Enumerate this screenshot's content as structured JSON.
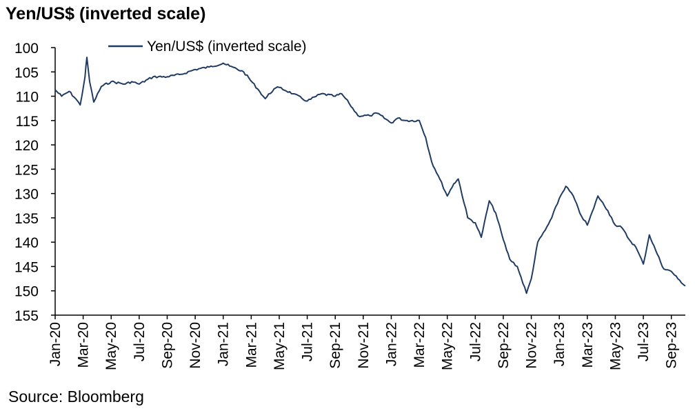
{
  "title": "Yen/US$ (inverted scale)",
  "source": "Source: Bloomberg",
  "chart_data": {
    "type": "line",
    "title": "Yen/US$ (inverted scale)",
    "xlabel": "",
    "ylabel": "",
    "x_start": "2020-01",
    "x_end": "2023-10",
    "ylim": [
      100,
      155
    ],
    "y_inverted": true,
    "y_ticks": [
      100,
      105,
      110,
      115,
      120,
      125,
      130,
      135,
      140,
      145,
      150,
      155
    ],
    "x_tick_labels": [
      "Jan-20",
      "Mar-20",
      "May-20",
      "Jul-20",
      "Sep-20",
      "Nov-20",
      "Jan-21",
      "Mar-21",
      "May-21",
      "Jul-21",
      "Sep-21",
      "Nov-21",
      "Jan-22",
      "Mar-22",
      "May-22",
      "Jul-22",
      "Sep-22",
      "Nov-22",
      "Jan-23",
      "Mar-23",
      "May-23",
      "Jul-23",
      "Sep-23"
    ],
    "grid": false,
    "legend_position": "top-left",
    "line_color": "#1f3b63",
    "series": [
      {
        "name": "Yen/US$ (inverted scale)",
        "points": [
          [
            "2020-01-01",
            108.7
          ],
          [
            "2020-01-15",
            110.0
          ],
          [
            "2020-02-01",
            109.0
          ],
          [
            "2020-02-15",
            110.5
          ],
          [
            "2020-02-25",
            111.8
          ],
          [
            "2020-03-05",
            106.0
          ],
          [
            "2020-03-09",
            102.0
          ],
          [
            "2020-03-15",
            107.0
          ],
          [
            "2020-03-24",
            111.2
          ],
          [
            "2020-04-10",
            108.0
          ],
          [
            "2020-05-01",
            107.0
          ],
          [
            "2020-06-01",
            107.5
          ],
          [
            "2020-06-15",
            107.0
          ],
          [
            "2020-07-01",
            107.5
          ],
          [
            "2020-08-01",
            106.0
          ],
          [
            "2020-09-01",
            106.0
          ],
          [
            "2020-10-01",
            105.5
          ],
          [
            "2020-11-01",
            104.5
          ],
          [
            "2020-12-01",
            104.0
          ],
          [
            "2021-01-01",
            103.2
          ],
          [
            "2021-01-15",
            103.8
          ],
          [
            "2021-02-15",
            105.0
          ],
          [
            "2021-03-15",
            108.5
          ],
          [
            "2021-04-01",
            110.5
          ],
          [
            "2021-04-20",
            108.5
          ],
          [
            "2021-05-01",
            108.2
          ],
          [
            "2021-06-01",
            109.5
          ],
          [
            "2021-07-01",
            111.0
          ],
          [
            "2021-08-01",
            109.5
          ],
          [
            "2021-09-01",
            110.0
          ],
          [
            "2021-09-15",
            109.5
          ],
          [
            "2021-10-01",
            111.5
          ],
          [
            "2021-10-20",
            114.0
          ],
          [
            "2021-11-15",
            114.0
          ],
          [
            "2021-12-01",
            113.5
          ],
          [
            "2022-01-01",
            115.5
          ],
          [
            "2022-01-15",
            114.5
          ],
          [
            "2022-02-01",
            115.0
          ],
          [
            "2022-03-01",
            115.0
          ],
          [
            "2022-03-15",
            118.5
          ],
          [
            "2022-03-28",
            123.5
          ],
          [
            "2022-04-15",
            127.0
          ],
          [
            "2022-05-01",
            130.5
          ],
          [
            "2022-05-15",
            128.0
          ],
          [
            "2022-05-25",
            127.0
          ],
          [
            "2022-06-15",
            135.0
          ],
          [
            "2022-07-01",
            136.0
          ],
          [
            "2022-07-14",
            139.0
          ],
          [
            "2022-08-01",
            131.5
          ],
          [
            "2022-08-15",
            134.0
          ],
          [
            "2022-09-01",
            139.5
          ],
          [
            "2022-09-15",
            143.5
          ],
          [
            "2022-10-01",
            145.0
          ],
          [
            "2022-10-21",
            150.5
          ],
          [
            "2022-11-01",
            147.5
          ],
          [
            "2022-11-15",
            140.0
          ],
          [
            "2022-12-01",
            137.5
          ],
          [
            "2022-12-15",
            135.0
          ],
          [
            "2023-01-01",
            131.0
          ],
          [
            "2023-01-15",
            128.5
          ],
          [
            "2023-02-01",
            130.5
          ],
          [
            "2023-02-15",
            134.0
          ],
          [
            "2023-03-01",
            136.5
          ],
          [
            "2023-03-15",
            133.0
          ],
          [
            "2023-03-24",
            130.5
          ],
          [
            "2023-04-15",
            133.5
          ],
          [
            "2023-05-01",
            136.5
          ],
          [
            "2023-05-15",
            137.0
          ],
          [
            "2023-06-01",
            139.5
          ],
          [
            "2023-06-15",
            141.0
          ],
          [
            "2023-07-01",
            144.5
          ],
          [
            "2023-07-14",
            138.5
          ],
          [
            "2023-08-01",
            142.5
          ],
          [
            "2023-08-15",
            145.5
          ],
          [
            "2023-09-01",
            146.0
          ],
          [
            "2023-09-15",
            147.5
          ],
          [
            "2023-10-01",
            149.0
          ]
        ]
      }
    ]
  }
}
